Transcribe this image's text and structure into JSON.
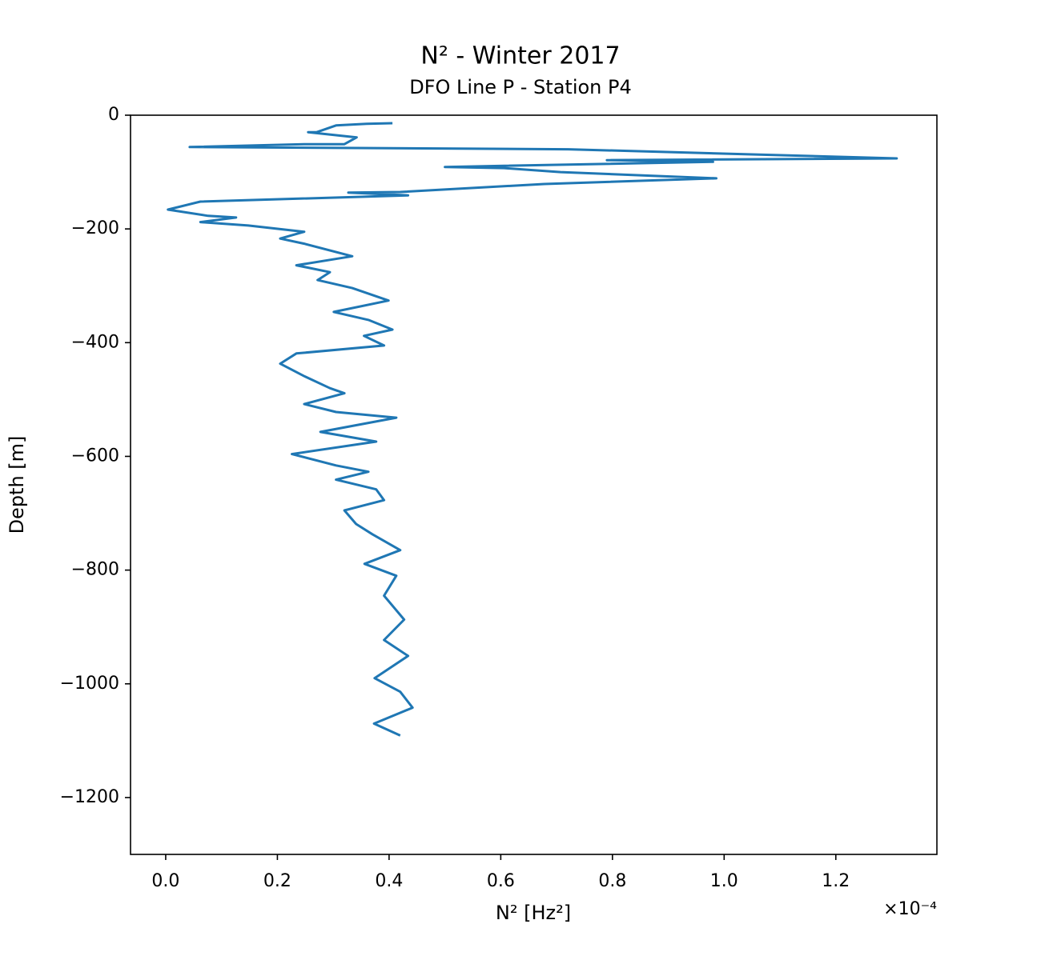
{
  "chart_data": {
    "type": "line",
    "title": "N² - Winter 2017",
    "subtitle": "DFO Line P - Station P4",
    "x_label": "N² [Hz²]",
    "x_offset_label": "×10⁻⁴",
    "y_label": "Depth [m]",
    "xlim": [
      -0.063,
      1.381
    ],
    "xticks": [
      {
        "value": 0,
        "label": "0.0"
      },
      0.2,
      0.4,
      0.6,
      0.8,
      {
        "value": 1,
        "label": "1.0"
      },
      1.2
    ],
    "ylim": [
      -1300,
      0
    ],
    "yticks": [
      0,
      {
        "value": -200,
        "label": "−200"
      },
      {
        "value": -400,
        "label": "−400"
      },
      {
        "value": -600,
        "label": "−600"
      },
      {
        "value": -800,
        "label": "−800"
      },
      {
        "value": -1000,
        "label": "−1000"
      },
      {
        "value": -1200,
        "label": "−1200"
      }
    ],
    "series": [
      {
        "color": "#1f77b4",
        "x": [
          0.406,
          0.36,
          0.305,
          0.27,
          0.255,
          0.342,
          0.32,
          0.248,
          0.043,
          0.721,
          1.309,
          0.79,
          0.98,
          0.5,
          0.606,
          0.707,
          0.986,
          0.678,
          0.42,
          0.327,
          0.434,
          0.062,
          0.004,
          0.076,
          0.126,
          0.062,
          0.148,
          0.248,
          0.205,
          0.248,
          0.334,
          0.234,
          0.294,
          0.272,
          0.334,
          0.399,
          0.301,
          0.363,
          0.406,
          0.355,
          0.391,
          0.234,
          0.205,
          0.248,
          0.294,
          0.32,
          0.248,
          0.305,
          0.413,
          0.277,
          0.377,
          0.226,
          0.305,
          0.363,
          0.305,
          0.377,
          0.391,
          0.32,
          0.341,
          0.37,
          0.42,
          0.356,
          0.413,
          0.391,
          0.427,
          0.391,
          0.434,
          0.374,
          0.42,
          0.442,
          0.373,
          0.42
        ],
        "values": [
          -14,
          -15,
          -18,
          -30,
          -30,
          -39,
          -51,
          -51,
          -56,
          -60,
          -76,
          -79,
          -82,
          -91,
          -93,
          -100,
          -111,
          -121,
          -135,
          -136,
          -141,
          -152,
          -166,
          -177,
          -180,
          -188,
          -194,
          -205,
          -217,
          -226,
          -248,
          -264,
          -276,
          -290,
          -304,
          -326,
          -346,
          -360,
          -377,
          -388,
          -405,
          -419,
          -437,
          -459,
          -480,
          -489,
          -508,
          -522,
          -532,
          -557,
          -574,
          -596,
          -616,
          -627,
          -641,
          -658,
          -677,
          -695,
          -719,
          -737,
          -765,
          -789,
          -810,
          -845,
          -887,
          -923,
          -951,
          -990,
          -1014,
          -1042,
          -1070,
          -1091
        ]
      }
    ]
  }
}
